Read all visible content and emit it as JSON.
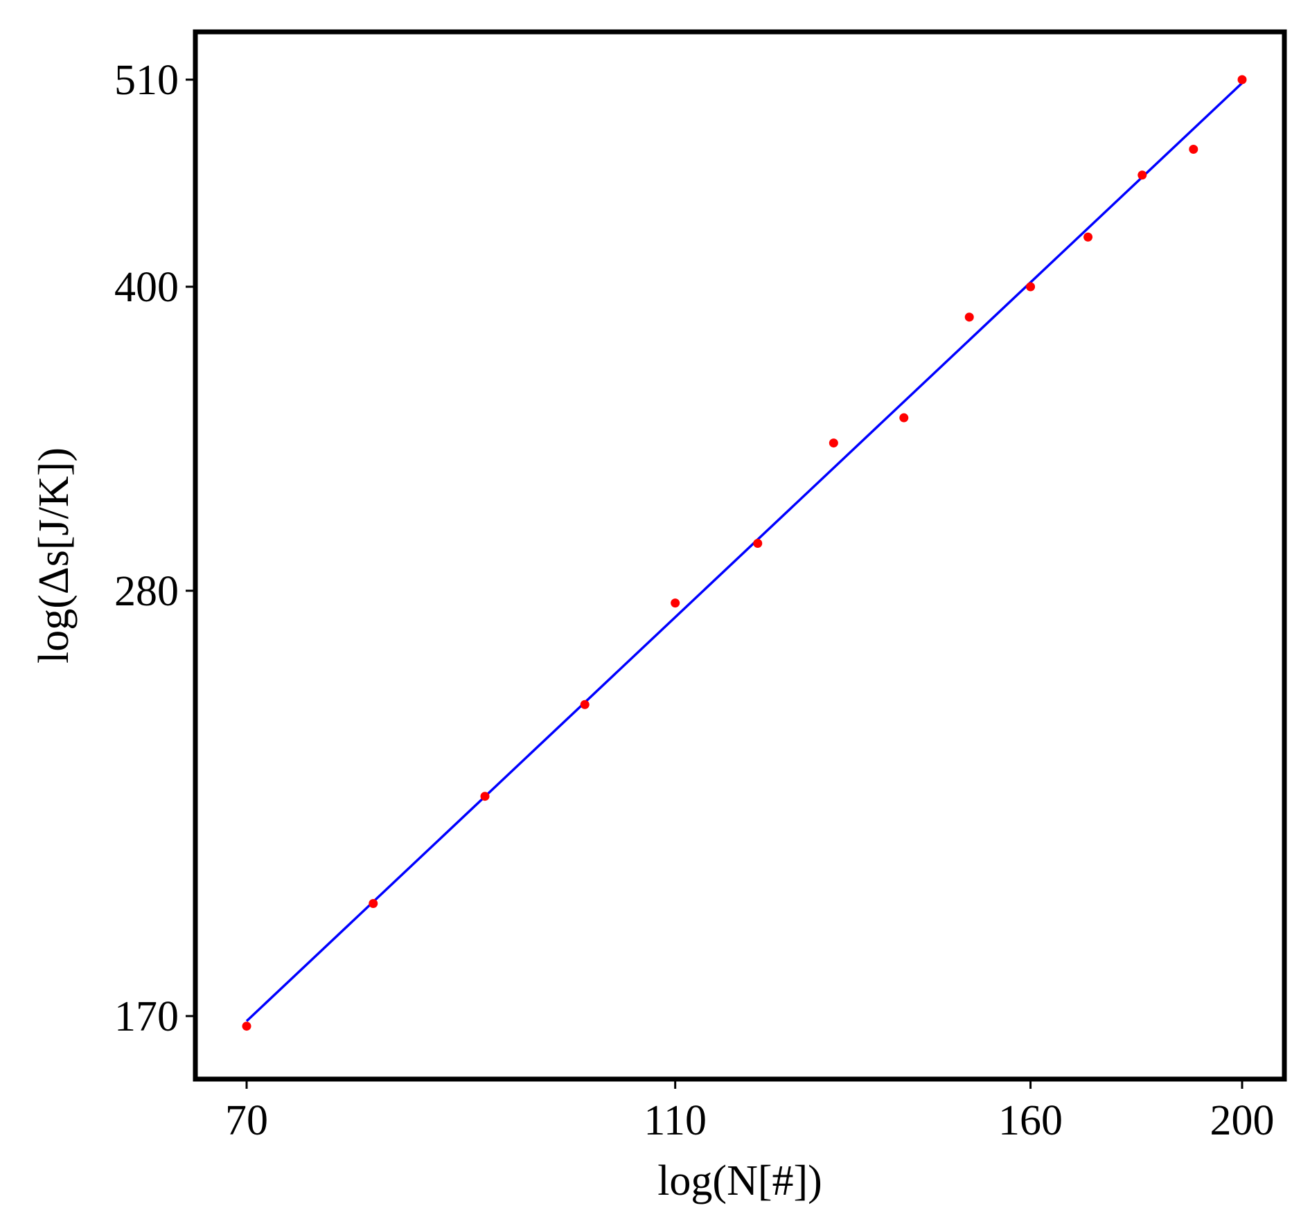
{
  "chart_data": {
    "type": "scatter",
    "xlabel": "log(N[#])",
    "ylabel": "log(Δs[J/K])",
    "x_scale": "log",
    "y_scale": "log",
    "xlim": [
      66,
      210
    ],
    "ylim": [
      155,
      560
    ],
    "xticks": [
      70,
      110,
      160,
      200
    ],
    "yticks": [
      170,
      280,
      400,
      510
    ],
    "grid": false,
    "legend": "none",
    "series": [
      {
        "kind": "points",
        "color": "#ff0000",
        "x": [
          70,
          80,
          90,
          100,
          110,
          120,
          130,
          140,
          150,
          160,
          170,
          180,
          190,
          200
        ],
        "y": [
          168,
          194,
          220,
          245,
          276,
          296,
          333,
          343,
          386,
          400,
          424,
          456,
          470,
          510
        ]
      },
      {
        "kind": "fit-line",
        "color": "#0000ff",
        "x": [
          70,
          200
        ],
        "y": [
          169,
          508
        ]
      }
    ]
  }
}
